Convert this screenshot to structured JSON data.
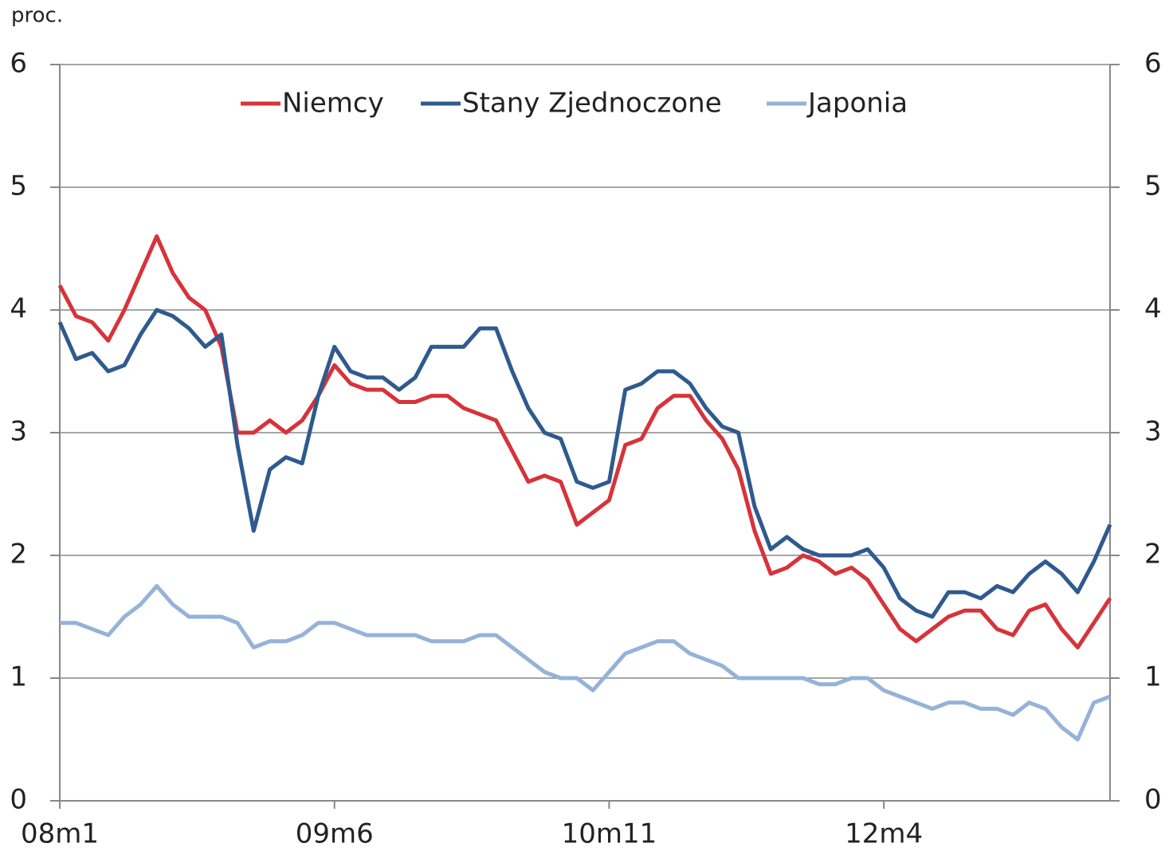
{
  "chart_data": {
    "type": "line",
    "y_label": "proc.",
    "categories": [
      "08m1",
      null,
      null,
      null,
      null,
      null,
      null,
      null,
      null,
      null,
      null,
      null,
      null,
      null,
      null,
      null,
      null,
      "09m6",
      null,
      null,
      null,
      null,
      null,
      null,
      null,
      null,
      null,
      null,
      null,
      null,
      null,
      null,
      null,
      null,
      "10m11",
      null,
      null,
      null,
      null,
      null,
      null,
      null,
      null,
      null,
      null,
      null,
      null,
      null,
      null,
      null,
      null,
      "12m4",
      null,
      null,
      null,
      null,
      null,
      null,
      null,
      null,
      null,
      null,
      null,
      null,
      null,
      null
    ],
    "series": [
      {
        "name": "Niemcy",
        "color": "#d7333a",
        "values": [
          4.2,
          3.95,
          3.9,
          3.75,
          4.0,
          4.3,
          4.6,
          4.3,
          4.1,
          4.0,
          3.7,
          3.0,
          3.0,
          3.1,
          3.0,
          3.1,
          3.3,
          3.55,
          3.4,
          3.35,
          3.35,
          3.25,
          3.25,
          3.3,
          3.3,
          3.2,
          3.15,
          3.1,
          2.85,
          2.6,
          2.65,
          2.6,
          2.25,
          2.35,
          2.45,
          2.9,
          2.95,
          3.2,
          3.3,
          3.3,
          3.1,
          2.95,
          2.7,
          2.2,
          1.85,
          1.9,
          2.0,
          1.95,
          1.85,
          1.9,
          1.8,
          1.6,
          1.4,
          1.3,
          1.4,
          1.5,
          1.55,
          1.55,
          1.4,
          1.35,
          1.55,
          1.6,
          1.4,
          1.25,
          1.45,
          1.65
        ]
      },
      {
        "name": "Stany Zjednoczone",
        "color": "#2f5a8e",
        "values": [
          3.9,
          3.6,
          3.65,
          3.5,
          3.55,
          3.8,
          4.0,
          3.95,
          3.85,
          3.7,
          3.8,
          2.9,
          2.2,
          2.7,
          2.8,
          2.75,
          3.3,
          3.7,
          3.5,
          3.45,
          3.45,
          3.35,
          3.45,
          3.7,
          3.7,
          3.7,
          3.85,
          3.85,
          3.5,
          3.2,
          3.0,
          2.95,
          2.6,
          2.55,
          2.6,
          3.35,
          3.4,
          3.5,
          3.5,
          3.4,
          3.2,
          3.05,
          3.0,
          2.4,
          2.05,
          2.15,
          2.05,
          2.0,
          2.0,
          2.0,
          2.05,
          1.9,
          1.65,
          1.55,
          1.5,
          1.7,
          1.7,
          1.65,
          1.75,
          1.7,
          1.85,
          1.95,
          1.85,
          1.7,
          1.95,
          2.25
        ]
      },
      {
        "name": "Japonia",
        "color": "#95b2d9",
        "values": [
          1.45,
          1.45,
          1.4,
          1.35,
          1.5,
          1.6,
          1.75,
          1.6,
          1.5,
          1.5,
          1.5,
          1.45,
          1.25,
          1.3,
          1.3,
          1.35,
          1.45,
          1.45,
          1.4,
          1.35,
          1.35,
          1.35,
          1.35,
          1.3,
          1.3,
          1.3,
          1.35,
          1.35,
          1.25,
          1.15,
          1.05,
          1.0,
          1.0,
          0.9,
          1.05,
          1.2,
          1.25,
          1.3,
          1.3,
          1.2,
          1.15,
          1.1,
          1.0,
          1.0,
          1.0,
          1.0,
          1.0,
          0.95,
          0.95,
          1.0,
          1.0,
          0.9,
          0.85,
          0.8,
          0.75,
          0.8,
          0.8,
          0.75,
          0.75,
          0.7,
          0.8,
          0.75,
          0.6,
          0.5,
          0.8,
          0.85
        ]
      }
    ],
    "ylim": [
      0,
      6
    ],
    "yticks": [
      0,
      1,
      2,
      3,
      4,
      5,
      6
    ],
    "grid": true,
    "legend": "top"
  }
}
